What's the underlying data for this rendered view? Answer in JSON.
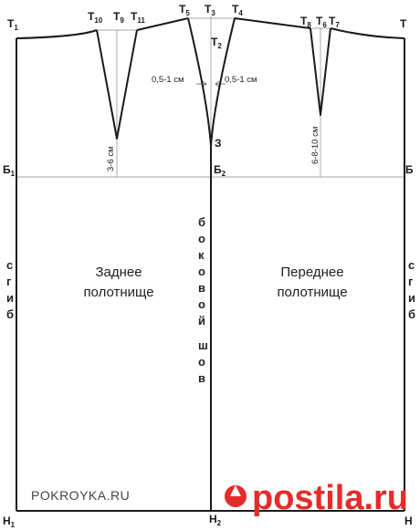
{
  "points": {
    "T1": {
      "base": "Т",
      "sub": "1"
    },
    "T10": {
      "base": "Т",
      "sub": "10"
    },
    "T9": {
      "base": "Т",
      "sub": "9"
    },
    "T11": {
      "base": "Т",
      "sub": "11"
    },
    "T5": {
      "base": "Т",
      "sub": "5"
    },
    "T3": {
      "base": "Т",
      "sub": "3"
    },
    "T4": {
      "base": "Т",
      "sub": "4"
    },
    "T2": {
      "base": "Т",
      "sub": "2"
    },
    "T8": {
      "base": "Т",
      "sub": "8"
    },
    "T6": {
      "base": "Т",
      "sub": "6"
    },
    "T7": {
      "base": "Т",
      "sub": "7"
    },
    "T": {
      "base": "Т",
      "sub": ""
    },
    "Z": {
      "base": "З",
      "sub": ""
    },
    "B1": {
      "base": "Б",
      "sub": "1"
    },
    "B2": {
      "base": "Б",
      "sub": "2"
    },
    "B": {
      "base": "Б",
      "sub": ""
    },
    "H1": {
      "base": "Н",
      "sub": "1"
    },
    "H2": {
      "base": "Н",
      "sub": "2"
    },
    "H": {
      "base": "Н",
      "sub": ""
    }
  },
  "measurements": {
    "back_dart_depth": "3-6 см",
    "front_dart_depth": "6-8-10 см",
    "side_left": "0,5-1 см",
    "side_right": "0,5-1 см"
  },
  "panels": {
    "back": [
      "Заднее",
      "полотнище"
    ],
    "front": [
      "Переднее",
      "полотнище"
    ]
  },
  "fold_label": [
    "с",
    "г",
    "и",
    "б"
  ],
  "side_seam_label": [
    "б",
    "о",
    "к",
    "о",
    "в",
    "о",
    "й",
    "",
    "ш",
    "о",
    "в"
  ],
  "watermark": {
    "site": "POKROYKA.RU",
    "brand": "postila.ru",
    "brand_color": "#e52b2b"
  }
}
